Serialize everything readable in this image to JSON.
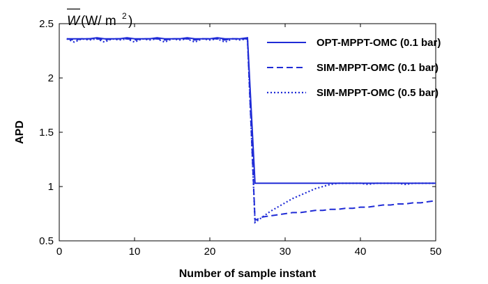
{
  "chart_data": {
    "type": "line",
    "title": "",
    "xlabel": "Number of sample instant",
    "ylabel": "APD",
    "unit_annotation": {
      "symbol": "W",
      "unit_open": "(W/ m",
      "unit_exp": "2",
      "unit_close": ")"
    },
    "xlim": [
      0,
      50
    ],
    "ylim": [
      0.5,
      2.5
    ],
    "xticks": [
      0,
      10,
      20,
      30,
      40,
      50
    ],
    "yticks": [
      0.5,
      1,
      1.5,
      2,
      2.5
    ],
    "xtick_labels": [
      "0",
      "10",
      "20",
      "30",
      "40",
      "50"
    ],
    "ytick_labels": [
      "0.5",
      "1",
      "1.5",
      "2",
      "2.5"
    ],
    "grid": false,
    "legend_position": "top-right",
    "line_color": "#1f2bd6",
    "series": [
      {
        "name": "OPT-MPPT-OMC (0.1 bar)",
        "style": "solid",
        "x": [
          1,
          2,
          3,
          4,
          5,
          6,
          7,
          8,
          9,
          10,
          11,
          12,
          13,
          14,
          15,
          16,
          17,
          18,
          19,
          20,
          21,
          22,
          23,
          24,
          25,
          26,
          27,
          28,
          29,
          30,
          31,
          32,
          33,
          34,
          35,
          36,
          37,
          38,
          39,
          40,
          41,
          42,
          43,
          44,
          45,
          46,
          47,
          48,
          49,
          50
        ],
        "values": [
          2.36,
          2.36,
          2.36,
          2.36,
          2.37,
          2.36,
          2.36,
          2.36,
          2.37,
          2.36,
          2.36,
          2.36,
          2.37,
          2.36,
          2.36,
          2.36,
          2.37,
          2.36,
          2.36,
          2.36,
          2.37,
          2.36,
          2.36,
          2.36,
          2.37,
          1.03,
          1.03,
          1.03,
          1.03,
          1.03,
          1.03,
          1.03,
          1.03,
          1.03,
          1.03,
          1.03,
          1.03,
          1.03,
          1.03,
          1.03,
          1.03,
          1.03,
          1.03,
          1.03,
          1.03,
          1.03,
          1.03,
          1.03,
          1.03,
          1.03
        ]
      },
      {
        "name": "SIM-MPPT-OMC (0.1 bar)",
        "style": "dashed",
        "x": [
          1,
          2,
          3,
          4,
          5,
          6,
          7,
          8,
          9,
          10,
          11,
          12,
          13,
          14,
          15,
          16,
          17,
          18,
          19,
          20,
          21,
          22,
          23,
          24,
          25,
          26,
          27,
          28,
          29,
          30,
          31,
          32,
          33,
          34,
          35,
          36,
          37,
          38,
          39,
          40,
          41,
          42,
          43,
          44,
          45,
          46,
          47,
          48,
          49,
          50
        ],
        "values": [
          2.36,
          2.35,
          2.36,
          2.36,
          2.36,
          2.35,
          2.36,
          2.36,
          2.36,
          2.35,
          2.36,
          2.36,
          2.36,
          2.35,
          2.36,
          2.36,
          2.36,
          2.35,
          2.36,
          2.36,
          2.36,
          2.35,
          2.36,
          2.36,
          2.36,
          0.69,
          0.72,
          0.73,
          0.74,
          0.75,
          0.76,
          0.76,
          0.77,
          0.78,
          0.78,
          0.79,
          0.79,
          0.8,
          0.8,
          0.81,
          0.81,
          0.82,
          0.83,
          0.83,
          0.84,
          0.84,
          0.85,
          0.85,
          0.86,
          0.87
        ]
      },
      {
        "name": "SIM-MPPT-OMC (0.5 bar)",
        "style": "dotted",
        "x": [
          1,
          2,
          3,
          4,
          5,
          6,
          7,
          8,
          9,
          10,
          11,
          12,
          13,
          14,
          15,
          16,
          17,
          18,
          19,
          20,
          21,
          22,
          23,
          24,
          25,
          26,
          27,
          28,
          29,
          30,
          31,
          32,
          33,
          34,
          35,
          36,
          37,
          38,
          39,
          40,
          41,
          42,
          43,
          44,
          45,
          46,
          47,
          48,
          49,
          50
        ],
        "values": [
          2.36,
          2.33,
          2.36,
          2.35,
          2.36,
          2.33,
          2.36,
          2.35,
          2.36,
          2.33,
          2.36,
          2.35,
          2.36,
          2.33,
          2.36,
          2.35,
          2.36,
          2.33,
          2.36,
          2.35,
          2.36,
          2.33,
          2.36,
          2.35,
          2.36,
          0.67,
          0.72,
          0.77,
          0.81,
          0.85,
          0.89,
          0.92,
          0.95,
          0.98,
          1.0,
          1.02,
          1.03,
          1.03,
          1.03,
          1.03,
          1.02,
          1.03,
          1.03,
          1.03,
          1.03,
          1.02,
          1.03,
          1.03,
          1.03,
          1.03
        ]
      }
    ]
  }
}
